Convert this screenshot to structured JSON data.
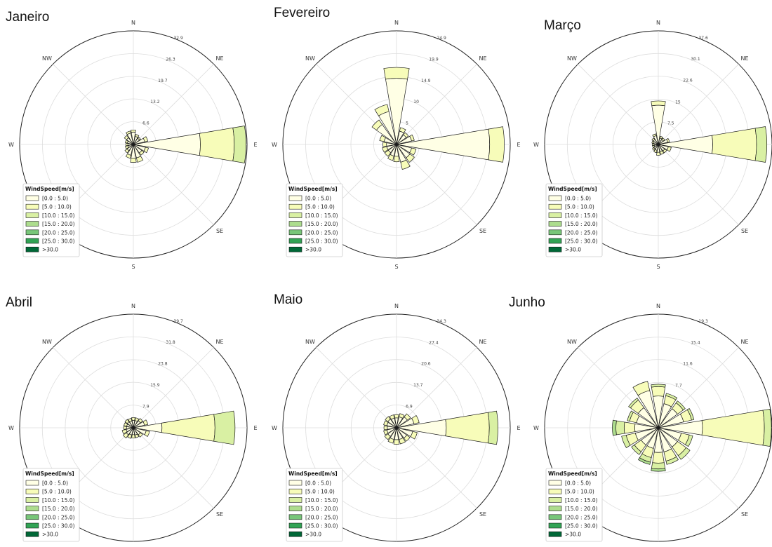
{
  "chart_data": [
    {
      "type": "windrose",
      "title": "Janeiro",
      "compass": [
        "N",
        "NE",
        "E",
        "SE",
        "S",
        "SW",
        "W",
        "NW"
      ],
      "radial_ticks": [
        6.6,
        13.2,
        19.7,
        26.3,
        32.9
      ],
      "rmax": 32.9,
      "legend_title": "WindSpeed[m/s]",
      "legend_labels": [
        "[0.0 : 5.0)",
        "[5.0 : 10.0)",
        "[10.0 : 15.0)",
        "[15.0 : 20.0)",
        "[20.0 : 25.0)",
        "[25.0 : 30.0)",
        ">30.0"
      ],
      "bin_colors": [
        "#ffffe5",
        "#f7fcb9",
        "#d9f0a3",
        "#addd8e",
        "#78c679",
        "#31a354",
        "#006837"
      ],
      "sectors": [
        {
          "dir": 0,
          "values": [
            3.6,
            0.6
          ]
        },
        {
          "dir": 22.5,
          "values": [
            2.4,
            0.6
          ]
        },
        {
          "dir": 45,
          "values": [
            2.2,
            0.4
          ]
        },
        {
          "dir": 67.5,
          "values": [
            3.4,
            0.9
          ]
        },
        {
          "dir": 90,
          "values": [
            19.4,
            9.8,
            3.4
          ]
        },
        {
          "dir": 112.5,
          "values": [
            3.6,
            0.9
          ]
        },
        {
          "dir": 135,
          "values": [
            3.0,
            0.8
          ]
        },
        {
          "dir": 157.5,
          "values": [
            4.0,
            1.3
          ]
        },
        {
          "dir": 180,
          "values": [
            4.0,
            1.2
          ]
        },
        {
          "dir": 202.5,
          "values": [
            3.2,
            0.9
          ]
        },
        {
          "dir": 225,
          "values": [
            2.2,
            0.8
          ]
        },
        {
          "dir": 247.5,
          "values": [
            1.6,
            0.8
          ]
        },
        {
          "dir": 270,
          "values": [
            1.6,
            0.6
          ]
        },
        {
          "dir": 292.5,
          "values": [
            1.8,
            0.6
          ]
        },
        {
          "dir": 315,
          "values": [
            2.4,
            0.8
          ]
        },
        {
          "dir": 337.5,
          "values": [
            3.4,
            0.6
          ]
        }
      ]
    },
    {
      "type": "windrose",
      "title": "Fevereiro",
      "compass": [
        "N",
        "NE",
        "E",
        "SE",
        "S",
        "SW",
        "W",
        "NW"
      ],
      "radial_ticks": [
        5.0,
        10.0,
        14.9,
        19.9,
        24.9
      ],
      "rmax": 24.9,
      "legend_title": "WindSpeed[m/s]",
      "legend_labels": [
        "[0.0 : 5.0)",
        "[5.0 : 10.0)",
        "[10.0 : 15.0)",
        "[15.0 : 20.0)",
        "[20.0 : 25.0)",
        "[25.0 : 30.0)",
        ">30.0"
      ],
      "bin_colors": [
        "#ffffe5",
        "#f7fcb9",
        "#d9f0a3",
        "#addd8e",
        "#78c679",
        "#31a354",
        "#006837"
      ],
      "sectors": [
        {
          "dir": 0,
          "values": [
            14.5,
            2.4
          ]
        },
        {
          "dir": 22.5,
          "values": [
            3.0,
            0.8
          ]
        },
        {
          "dir": 45,
          "values": [
            2.6,
            0.6
          ]
        },
        {
          "dir": 67.5,
          "values": [
            3.4,
            0.6
          ]
        },
        {
          "dir": 90,
          "values": [
            20.4,
            3.2
          ]
        },
        {
          "dir": 112.5,
          "values": [
            3.4,
            1.0
          ]
        },
        {
          "dir": 135,
          "values": [
            3.6,
            1.2
          ]
        },
        {
          "dir": 157.5,
          "values": [
            4.0,
            1.6
          ]
        },
        {
          "dir": 180,
          "values": [
            2.6,
            1.2
          ]
        },
        {
          "dir": 202.5,
          "values": [
            2.6,
            1.0
          ]
        },
        {
          "dir": 225,
          "values": [
            2.2,
            1.0
          ]
        },
        {
          "dir": 247.5,
          "values": [
            2.2,
            1.0
          ]
        },
        {
          "dir": 270,
          "values": [
            2.2,
            0.8
          ]
        },
        {
          "dir": 292.5,
          "values": [
            2.8,
            1.0
          ]
        },
        {
          "dir": 315,
          "values": [
            5.4,
            1.2
          ]
        },
        {
          "dir": 337.5,
          "values": [
            7.4,
            1.6
          ]
        }
      ]
    },
    {
      "type": "windrose",
      "title": "Março",
      "compass": [
        "N",
        "NE",
        "E",
        "SE",
        "S",
        "SW",
        "W",
        "NW"
      ],
      "radial_ticks": [
        7.5,
        15.0,
        22.6,
        30.1,
        37.6
      ],
      "rmax": 37.6,
      "legend_title": "WindSpeed[m/s]",
      "legend_labels": [
        "[0.0 : 5.0)",
        "[5.0 : 10.0)",
        "[10.0 : 15.0)",
        "[15.0 : 20.0)",
        "[20.0 : 25.0)",
        "[25.0 : 30.0)",
        ">30.0"
      ],
      "bin_colors": [
        "#ffffe5",
        "#f7fcb9",
        "#d9f0a3",
        "#addd8e",
        "#78c679",
        "#31a354",
        "#006837"
      ],
      "sectors": [
        {
          "dir": 0,
          "values": [
            13.0,
            1.4
          ]
        },
        {
          "dir": 22.5,
          "values": [
            2.2,
            0.6
          ]
        },
        {
          "dir": 45,
          "values": [
            2.0,
            0.6
          ]
        },
        {
          "dir": 67.5,
          "values": [
            3.2,
            0.6
          ]
        },
        {
          "dir": 90,
          "values": [
            18.0,
            14.5,
            3.4
          ]
        },
        {
          "dir": 112.5,
          "values": [
            3.4,
            1.0
          ]
        },
        {
          "dir": 135,
          "values": [
            2.6,
            0.8
          ]
        },
        {
          "dir": 157.5,
          "values": [
            2.4,
            1.0
          ]
        },
        {
          "dir": 180,
          "values": [
            2.6,
            1.0
          ]
        },
        {
          "dir": 202.5,
          "values": [
            2.0,
            0.8
          ]
        },
        {
          "dir": 225,
          "values": [
            1.8,
            0.6
          ]
        },
        {
          "dir": 247.5,
          "values": [
            1.4,
            0.6
          ]
        },
        {
          "dir": 270,
          "values": [
            1.4,
            0.6
          ]
        },
        {
          "dir": 292.5,
          "values": [
            1.6,
            0.6
          ]
        },
        {
          "dir": 315,
          "values": [
            2.0,
            0.6
          ]
        },
        {
          "dir": 337.5,
          "values": [
            3.0,
            0.6
          ]
        }
      ]
    },
    {
      "type": "windrose",
      "title": "Abril",
      "compass": [
        "N",
        "NE",
        "E",
        "SE",
        "S",
        "SW",
        "W",
        "NW"
      ],
      "radial_ticks": [
        7.9,
        15.9,
        23.8,
        31.8,
        39.7
      ],
      "rmax": 39.7,
      "legend_title": "WindSpeed[m/s]",
      "legend_labels": [
        "[0.0 : 5.0)",
        "[5.0 : 10.0)",
        "[10.0 : 15.0)",
        "[15.0 : 20.0)",
        "[20.0 : 25.0)",
        "[25.0 : 30.0)",
        ">30.0"
      ],
      "bin_colors": [
        "#ffffe5",
        "#f7fcb9",
        "#d9f0a3",
        "#addd8e",
        "#78c679",
        "#31a354",
        "#006837"
      ],
      "sectors": [
        {
          "dir": 0,
          "values": [
            2.6,
            1.0
          ]
        },
        {
          "dir": 22.5,
          "values": [
            2.6,
            1.0
          ]
        },
        {
          "dir": 45,
          "values": [
            3.0,
            1.0
          ]
        },
        {
          "dir": 67.5,
          "values": [
            4.0,
            1.2
          ]
        },
        {
          "dir": 90,
          "values": [
            10.0,
            18.5,
            7.0
          ]
        },
        {
          "dir": 112.5,
          "values": [
            4.6,
            1.2
          ]
        },
        {
          "dir": 135,
          "values": [
            3.0,
            1.0
          ]
        },
        {
          "dir": 157.5,
          "values": [
            2.6,
            1.0
          ]
        },
        {
          "dir": 180,
          "values": [
            2.4,
            1.2
          ]
        },
        {
          "dir": 202.5,
          "values": [
            2.6,
            1.2
          ]
        },
        {
          "dir": 225,
          "values": [
            3.0,
            1.4
          ]
        },
        {
          "dir": 247.5,
          "values": [
            2.6,
            1.4
          ]
        },
        {
          "dir": 270,
          "values": [
            2.4,
            1.0
          ]
        },
        {
          "dir": 292.5,
          "values": [
            2.4,
            1.0
          ]
        },
        {
          "dir": 315,
          "values": [
            2.6,
            1.0
          ]
        },
        {
          "dir": 337.5,
          "values": [
            2.4,
            1.0
          ]
        }
      ]
    },
    {
      "type": "windrose",
      "title": "Maio",
      "compass": [
        "N",
        "NE",
        "E",
        "SE",
        "S",
        "SW",
        "W",
        "NW"
      ],
      "radial_ticks": [
        6.9,
        13.7,
        20.6,
        27.4,
        34.3
      ],
      "rmax": 34.3,
      "legend_title": "WindSpeed[m/s]",
      "legend_labels": [
        "[0.0 : 5.0)",
        "[5.0 : 10.0)",
        "[10.0 : 15.0)",
        "[15.0 : 20.0)",
        "[20.0 : 25.0)",
        "[25.0 : 30.0)",
        ">30.0"
      ],
      "bin_colors": [
        "#ffffe5",
        "#f7fcb9",
        "#d9f0a3",
        "#addd8e",
        "#78c679",
        "#31a354",
        "#006837"
      ],
      "sectors": [
        {
          "dir": 0,
          "values": [
            3.0,
            1.0
          ]
        },
        {
          "dir": 22.5,
          "values": [
            3.4,
            1.0
          ]
        },
        {
          "dir": 45,
          "values": [
            4.0,
            1.2
          ]
        },
        {
          "dir": 67.5,
          "values": [
            5.4,
            1.6
          ]
        },
        {
          "dir": 90,
          "values": [
            15.0,
            13.0,
            2.6
          ]
        },
        {
          "dir": 112.5,
          "values": [
            5.0,
            1.4
          ]
        },
        {
          "dir": 135,
          "values": [
            3.8,
            1.2
          ]
        },
        {
          "dir": 157.5,
          "values": [
            3.6,
            1.4
          ]
        },
        {
          "dir": 180,
          "values": [
            3.6,
            1.4
          ]
        },
        {
          "dir": 202.5,
          "values": [
            3.6,
            1.2
          ]
        },
        {
          "dir": 225,
          "values": [
            3.2,
            1.2
          ]
        },
        {
          "dir": 247.5,
          "values": [
            3.0,
            1.0
          ]
        },
        {
          "dir": 270,
          "values": [
            2.8,
            1.0
          ]
        },
        {
          "dir": 292.5,
          "values": [
            3.0,
            1.0
          ]
        },
        {
          "dir": 315,
          "values": [
            3.2,
            1.0
          ]
        },
        {
          "dir": 337.5,
          "values": [
            3.0,
            1.0
          ]
        }
      ]
    },
    {
      "type": "windrose",
      "title": "Junho",
      "compass": [
        "N",
        "NE",
        "E",
        "SE",
        "S",
        "SW",
        "W",
        "NW"
      ],
      "radial_ticks": [
        7.7,
        11.6,
        15.4,
        19.3
      ],
      "rmax": 19.3,
      "legend_title": "WindSpeed[m/s]",
      "legend_labels": [
        "[0.0 : 5.0)",
        "[5.0 : 10.0)",
        "[10.0 : 15.0)",
        "[15.0 : 20.0)",
        "[20.0 : 25.0)",
        "[25.0 : 30.0)",
        ">30.0"
      ],
      "bin_colors": [
        "#ffffe5",
        "#f7fcb9",
        "#d9f0a3",
        "#addd8e",
        "#78c679",
        "#31a354",
        "#006837"
      ],
      "sectors": [
        {
          "dir": 0,
          "values": [
            5.4,
            1.6,
            0.4
          ]
        },
        {
          "dir": 22.5,
          "values": [
            4.2,
            1.4,
            0.4
          ]
        },
        {
          "dir": 45,
          "values": [
            4.0,
            1.2,
            0.4
          ]
        },
        {
          "dir": 67.5,
          "values": [
            4.4,
            1.4,
            0.4
          ]
        },
        {
          "dir": 90,
          "values": [
            7.5,
            10.5,
            1.2
          ]
        },
        {
          "dir": 112.5,
          "values": [
            4.0,
            1.4,
            0.6
          ]
        },
        {
          "dir": 135,
          "values": [
            4.0,
            1.8,
            0.8
          ]
        },
        {
          "dir": 157.5,
          "values": [
            4.2,
            1.6,
            0.6
          ]
        },
        {
          "dir": 180,
          "values": [
            4.2,
            1.8,
            1.0,
            0.4
          ]
        },
        {
          "dir": 202.5,
          "values": [
            3.6,
            1.6,
            0.8,
            0.4
          ]
        },
        {
          "dir": 225,
          "values": [
            3.6,
            1.4,
            0.6
          ]
        },
        {
          "dir": 247.5,
          "values": [
            4.0,
            1.6,
            0.8
          ]
        },
        {
          "dir": 270,
          "values": [
            4.0,
            1.8,
            1.4,
            0.6
          ]
        },
        {
          "dir": 292.5,
          "values": [
            3.8,
            1.2,
            0.4
          ]
        },
        {
          "dir": 315,
          "values": [
            4.2,
            1.6,
            0.4
          ]
        },
        {
          "dir": 337.5,
          "values": [
            6.5,
            1.6
          ]
        }
      ]
    }
  ]
}
